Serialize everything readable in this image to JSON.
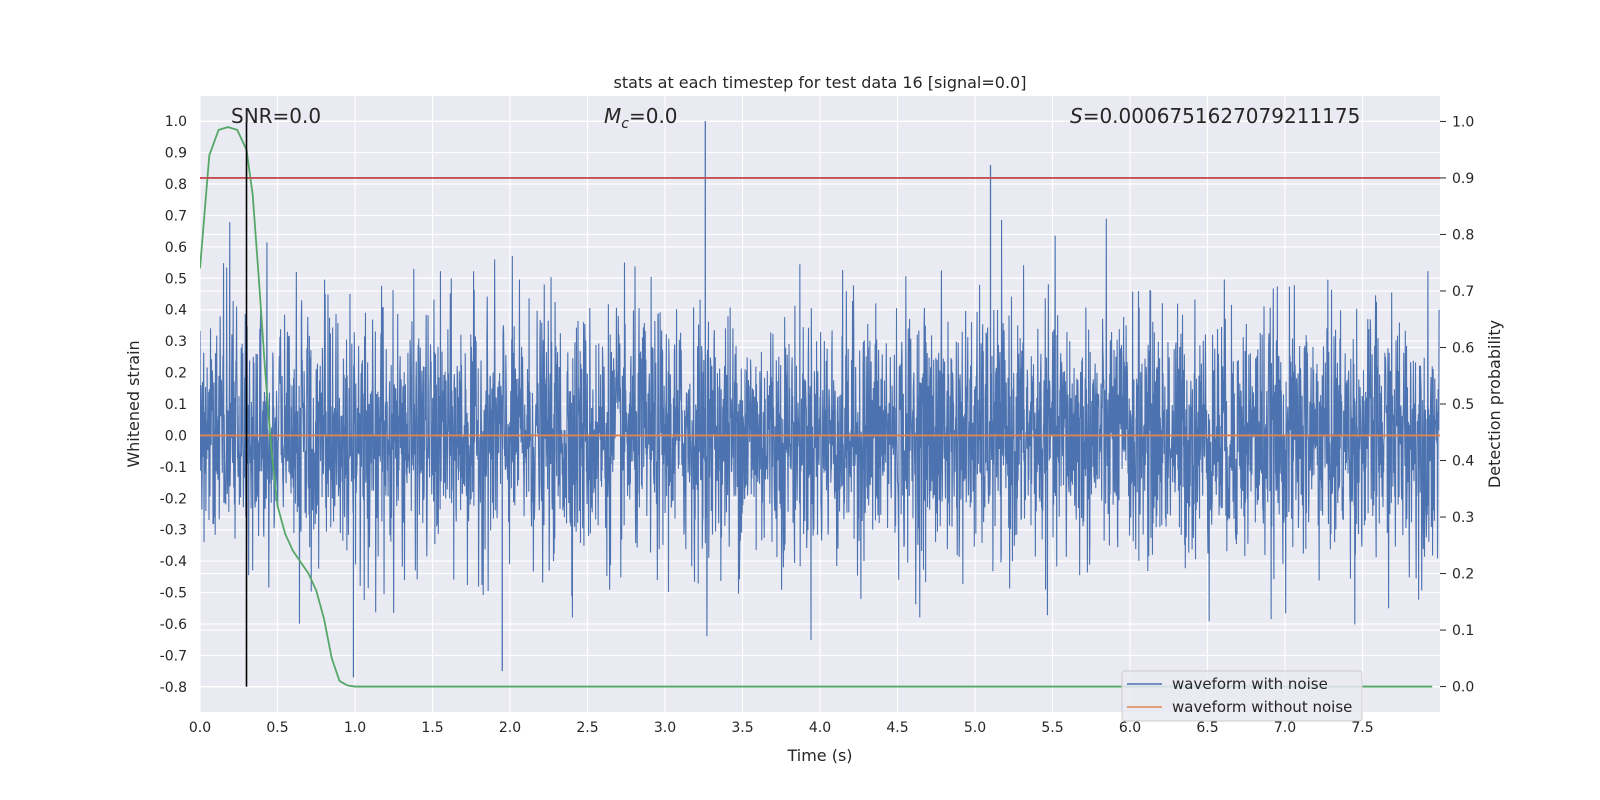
{
  "chart_data": {
    "type": "line",
    "title": "stats at each timestep for test data 16 [signal=0.0]",
    "xlabel": "Time (s)",
    "ylabel_left": "Whitened strain",
    "ylabel_right": "Detection probability",
    "xlim": [
      0.0,
      8.0
    ],
    "ylim_left": [
      -0.88,
      1.08
    ],
    "ylim_right": [
      -0.045,
      1.045
    ],
    "x_ticks": [
      "0.0",
      "0.5",
      "1.0",
      "1.5",
      "2.0",
      "2.5",
      "3.0",
      "3.5",
      "4.0",
      "4.5",
      "5.0",
      "5.5",
      "6.0",
      "6.5",
      "7.0",
      "7.5"
    ],
    "y_left_ticks": [
      "1.0",
      "0.9",
      "0.8",
      "0.7",
      "0.6",
      "0.5",
      "0.4",
      "0.3",
      "0.2",
      "0.1",
      "0.0",
      "-0.1",
      "-0.2",
      "-0.3",
      "-0.4",
      "-0.5",
      "-0.6",
      "-0.7",
      "-0.8"
    ],
    "y_right_ticks": [
      "1.0",
      "0.9",
      "0.8",
      "0.7",
      "0.6",
      "0.5",
      "0.4",
      "0.3",
      "0.2",
      "0.1",
      "0.0"
    ],
    "annotations": {
      "snr": "SNR=0.0",
      "mc_symbol": "M",
      "mc_sub": "c",
      "mc_value": "=0.0",
      "s_symbol": "S",
      "s_value": "=0.0006751627079211175"
    },
    "legend": {
      "placement": "lower-right",
      "entries": [
        "waveform with noise",
        "waveform without noise"
      ]
    },
    "series": [
      {
        "name": "waveform with noise",
        "axis": "left",
        "color": "#4c72b0",
        "kind": "noise",
        "envelope": [
          -0.78,
          1.0
        ],
        "typical_amplitude": 0.35
      },
      {
        "name": "waveform without noise",
        "axis": "left",
        "color": "#dd8452",
        "x": [
          0.0,
          8.0
        ],
        "y": [
          0.0,
          0.0
        ]
      },
      {
        "name": "detection probability",
        "axis": "right",
        "color": "#55a868",
        "x": [
          0.0,
          0.06,
          0.12,
          0.18,
          0.24,
          0.3,
          0.34,
          0.38,
          0.42,
          0.46,
          0.5,
          0.55,
          0.6,
          0.65,
          0.7,
          0.75,
          0.8,
          0.85,
          0.9,
          0.95,
          1.0,
          1.5,
          2.0,
          3.0,
          4.0,
          5.0,
          6.0,
          7.0,
          7.95
        ],
        "y": [
          0.74,
          0.94,
          0.985,
          0.99,
          0.985,
          0.95,
          0.87,
          0.72,
          0.56,
          0.42,
          0.32,
          0.27,
          0.24,
          0.22,
          0.2,
          0.17,
          0.12,
          0.05,
          0.01,
          0.002,
          0.0,
          0.0,
          0.0,
          0.0,
          0.0,
          0.0,
          0.0,
          0.0,
          0.0
        ]
      },
      {
        "name": "threshold",
        "axis": "right",
        "color": "#c44e52",
        "x": [
          0.0,
          8.0
        ],
        "y": [
          0.9,
          0.9
        ]
      },
      {
        "name": "marker",
        "axis": "right",
        "color": "#000000",
        "x": [
          0.3,
          0.3
        ],
        "y": [
          0.0,
          1.0
        ]
      }
    ]
  }
}
